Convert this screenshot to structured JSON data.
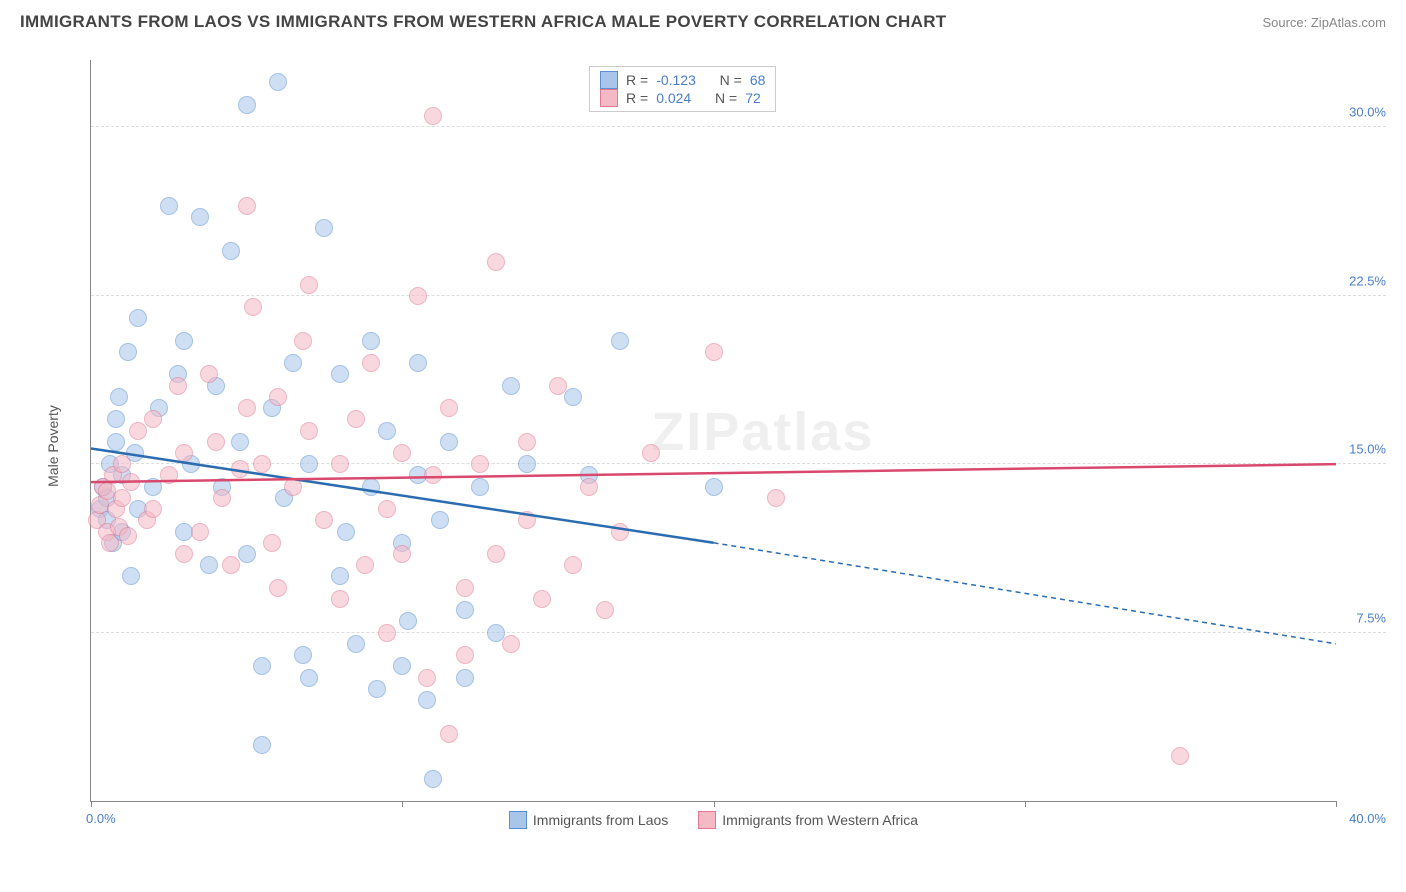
{
  "title": "IMMIGRANTS FROM LAOS VS IMMIGRANTS FROM WESTERN AFRICA MALE POVERTY CORRELATION CHART",
  "source_prefix": "Source: ",
  "source_name": "ZipAtlas.com",
  "ylabel": "Male Poverty",
  "watermark": "ZIPatlas",
  "chart": {
    "type": "scatter",
    "xlim": [
      0,
      40
    ],
    "ylim": [
      0,
      33
    ],
    "yticks": [
      7.5,
      15.0,
      22.5,
      30.0
    ],
    "ytick_labels": [
      "7.5%",
      "15.0%",
      "22.5%",
      "30.0%"
    ],
    "xtick_label_left": "0.0%",
    "xtick_label_right": "40.0%",
    "xticks": [
      0,
      10,
      20,
      30,
      40
    ],
    "background_color": "#ffffff",
    "grid_color": "#dddddd",
    "marker_radius": 8,
    "marker_opacity": 0.55,
    "series": [
      {
        "id": "laos",
        "label": "Immigrants from Laos",
        "color_fill": "#a8c6ea",
        "color_stroke": "#5b8fd0",
        "trend_color": "#2b6cb0",
        "stats": {
          "R": "-0.123",
          "N": "68"
        },
        "trend": {
          "x1": 0,
          "y1": 15.7,
          "x2_solid": 20,
          "y2_solid": 11.5,
          "x2": 40,
          "y2": 7.0
        },
        "points": [
          [
            0.3,
            13.0
          ],
          [
            0.4,
            14.0
          ],
          [
            0.5,
            12.5
          ],
          [
            0.5,
            13.5
          ],
          [
            0.6,
            15.0
          ],
          [
            0.7,
            11.5
          ],
          [
            0.8,
            16.0
          ],
          [
            0.8,
            17.0
          ],
          [
            0.9,
            18.0
          ],
          [
            1.0,
            12.0
          ],
          [
            1.0,
            14.5
          ],
          [
            1.2,
            20.0
          ],
          [
            1.3,
            10.0
          ],
          [
            1.4,
            15.5
          ],
          [
            1.5,
            13.0
          ],
          [
            1.5,
            21.5
          ],
          [
            2.0,
            14.0
          ],
          [
            2.2,
            17.5
          ],
          [
            2.5,
            26.5
          ],
          [
            2.8,
            19.0
          ],
          [
            3.0,
            12.0
          ],
          [
            3.0,
            20.5
          ],
          [
            3.2,
            15.0
          ],
          [
            3.5,
            26.0
          ],
          [
            3.8,
            10.5
          ],
          [
            4.0,
            18.5
          ],
          [
            4.2,
            14.0
          ],
          [
            4.5,
            24.5
          ],
          [
            4.8,
            16.0
          ],
          [
            5.0,
            11.0
          ],
          [
            5.0,
            31.0
          ],
          [
            5.5,
            2.5
          ],
          [
            5.8,
            17.5
          ],
          [
            6.0,
            32.0
          ],
          [
            6.2,
            13.5
          ],
          [
            6.5,
            19.5
          ],
          [
            7.0,
            5.5
          ],
          [
            7.0,
            15.0
          ],
          [
            7.5,
            25.5
          ],
          [
            8.0,
            10.0
          ],
          [
            8.0,
            19.0
          ],
          [
            8.5,
            7.0
          ],
          [
            9.0,
            14.0
          ],
          [
            9.0,
            20.5
          ],
          [
            9.2,
            5.0
          ],
          [
            9.5,
            16.5
          ],
          [
            10.0,
            6.0
          ],
          [
            10.0,
            11.5
          ],
          [
            10.2,
            8.0
          ],
          [
            10.5,
            14.5
          ],
          [
            10.5,
            19.5
          ],
          [
            10.8,
            4.5
          ],
          [
            11.0,
            1.0
          ],
          [
            11.5,
            16.0
          ],
          [
            12.0,
            5.5
          ],
          [
            12.0,
            8.5
          ],
          [
            12.5,
            14.0
          ],
          [
            13.0,
            7.5
          ],
          [
            13.5,
            18.5
          ],
          [
            14.0,
            15.0
          ],
          [
            15.5,
            18.0
          ],
          [
            16.0,
            14.5
          ],
          [
            17.0,
            20.5
          ],
          [
            20.0,
            14.0
          ],
          [
            5.5,
            6.0
          ],
          [
            6.8,
            6.5
          ],
          [
            8.2,
            12.0
          ],
          [
            11.2,
            12.5
          ]
        ]
      },
      {
        "id": "wafrica",
        "label": "Immigrants from Western Africa",
        "color_fill": "#f5b8c5",
        "color_stroke": "#e07a94",
        "trend_color": "#d9486e",
        "stats": {
          "R": "0.024",
          "N": "72"
        },
        "trend": {
          "x1": 0,
          "y1": 14.2,
          "x2_solid": 40,
          "y2_solid": 15.0,
          "x2": 40,
          "y2": 15.0
        },
        "points": [
          [
            0.2,
            12.5
          ],
          [
            0.3,
            13.2
          ],
          [
            0.4,
            14.0
          ],
          [
            0.5,
            12.0
          ],
          [
            0.5,
            13.8
          ],
          [
            0.6,
            11.5
          ],
          [
            0.7,
            14.5
          ],
          [
            0.8,
            13.0
          ],
          [
            0.9,
            12.2
          ],
          [
            1.0,
            15.0
          ],
          [
            1.0,
            13.5
          ],
          [
            1.2,
            11.8
          ],
          [
            1.3,
            14.2
          ],
          [
            1.5,
            16.5
          ],
          [
            1.8,
            12.5
          ],
          [
            2.0,
            17.0
          ],
          [
            2.0,
            13.0
          ],
          [
            2.5,
            14.5
          ],
          [
            2.8,
            18.5
          ],
          [
            3.0,
            11.0
          ],
          [
            3.0,
            15.5
          ],
          [
            3.5,
            12.0
          ],
          [
            3.8,
            19.0
          ],
          [
            4.0,
            16.0
          ],
          [
            4.2,
            13.5
          ],
          [
            4.5,
            10.5
          ],
          [
            4.8,
            14.8
          ],
          [
            5.0,
            17.5
          ],
          [
            5.0,
            26.5
          ],
          [
            5.2,
            22.0
          ],
          [
            5.5,
            15.0
          ],
          [
            5.8,
            11.5
          ],
          [
            6.0,
            18.0
          ],
          [
            6.0,
            9.5
          ],
          [
            6.5,
            14.0
          ],
          [
            6.8,
            20.5
          ],
          [
            7.0,
            16.5
          ],
          [
            7.0,
            23.0
          ],
          [
            7.5,
            12.5
          ],
          [
            8.0,
            15.0
          ],
          [
            8.0,
            9.0
          ],
          [
            8.5,
            17.0
          ],
          [
            8.8,
            10.5
          ],
          [
            9.0,
            19.5
          ],
          [
            9.5,
            13.0
          ],
          [
            9.5,
            7.5
          ],
          [
            10.0,
            15.5
          ],
          [
            10.0,
            11.0
          ],
          [
            10.5,
            22.5
          ],
          [
            11.0,
            14.5
          ],
          [
            11.0,
            30.5
          ],
          [
            11.5,
            17.5
          ],
          [
            12.0,
            9.5
          ],
          [
            12.0,
            6.5
          ],
          [
            12.5,
            15.0
          ],
          [
            13.0,
            11.0
          ],
          [
            13.0,
            24.0
          ],
          [
            13.5,
            7.0
          ],
          [
            14.0,
            12.5
          ],
          [
            14.0,
            16.0
          ],
          [
            14.5,
            9.0
          ],
          [
            15.0,
            18.5
          ],
          [
            15.5,
            10.5
          ],
          [
            16.0,
            14.0
          ],
          [
            16.5,
            8.5
          ],
          [
            17.0,
            12.0
          ],
          [
            18.0,
            15.5
          ],
          [
            20.0,
            20.0
          ],
          [
            22.0,
            13.5
          ],
          [
            35.0,
            2.0
          ],
          [
            10.8,
            5.5
          ],
          [
            11.5,
            3.0
          ]
        ]
      }
    ]
  },
  "stats_labels": {
    "R": "R =",
    "N": "N ="
  },
  "xlegend": [
    {
      "label": "Immigrants from Laos",
      "fill": "#a8c6ea",
      "stroke": "#5b8fd0"
    },
    {
      "label": "Immigrants from Western Africa",
      "fill": "#f5b8c5",
      "stroke": "#e07a94"
    }
  ]
}
